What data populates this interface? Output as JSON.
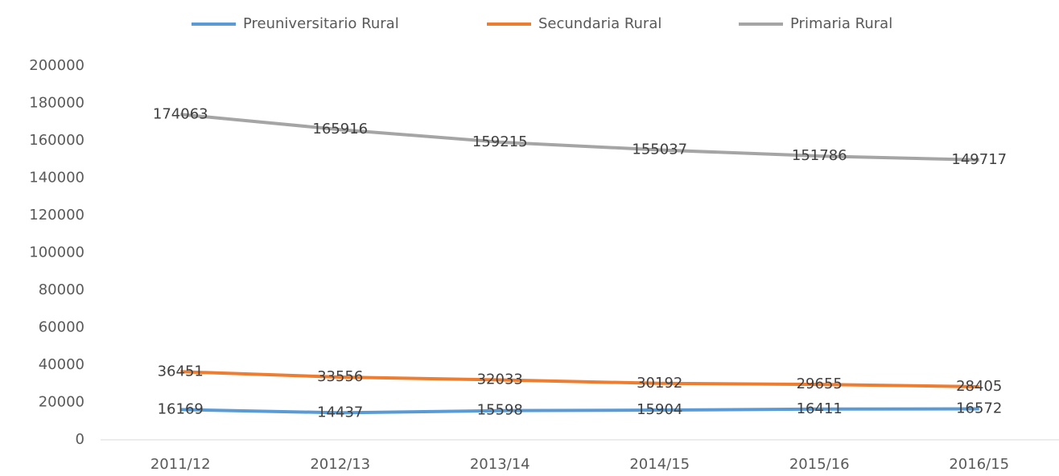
{
  "chart_data": {
    "type": "line",
    "categories": [
      "2011/12",
      "2012/13",
      "2013/14",
      "2014/15",
      "2015/16",
      "2016/15"
    ],
    "series": [
      {
        "name": "Preuniversitario Rural",
        "color": "#5b9bd5",
        "values": [
          16169,
          14437,
          15598,
          15904,
          16411,
          16572
        ]
      },
      {
        "name": "Secundaria Rural",
        "color": "#ed7d31",
        "values": [
          36451,
          33556,
          32033,
          30192,
          29655,
          28405
        ]
      },
      {
        "name": "Primaria Rural",
        "color": "#a5a5a5",
        "values": [
          174063,
          165916,
          159215,
          155037,
          151786,
          149717
        ]
      }
    ],
    "ylim": [
      0,
      200000
    ],
    "yticks": [
      0,
      20000,
      40000,
      60000,
      80000,
      100000,
      120000,
      140000,
      160000,
      180000,
      200000
    ],
    "legend": "top"
  }
}
